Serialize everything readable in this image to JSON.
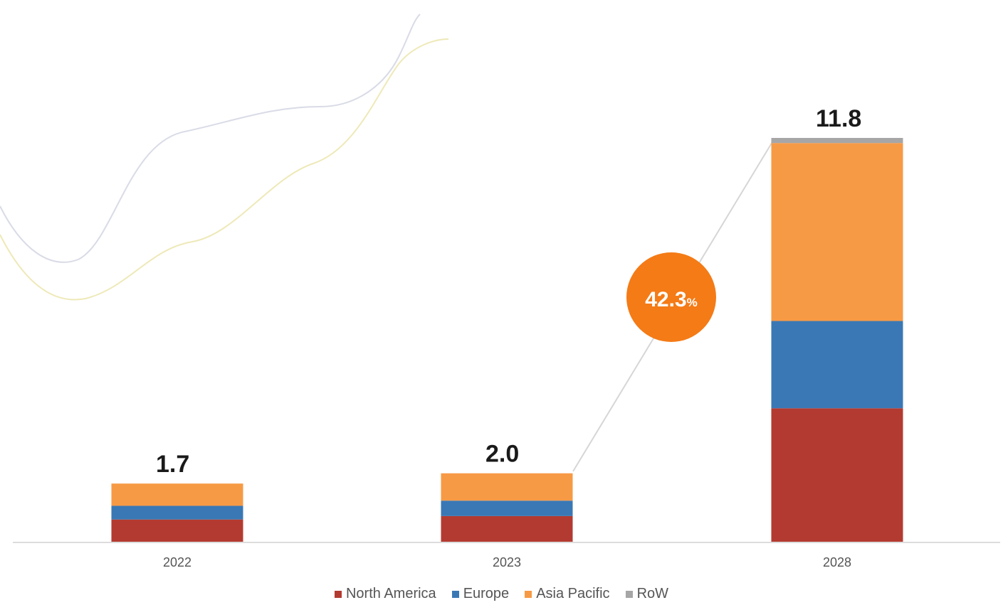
{
  "chart_data": {
    "type": "bar",
    "stacked": true,
    "categories": [
      "2022",
      "2023",
      "2028"
    ],
    "totals": [
      "1.7",
      "2.0",
      "11.8"
    ],
    "series": [
      {
        "name": "North America",
        "color": "#B33A30",
        "values": [
          0.65,
          0.75,
          3.9
        ]
      },
      {
        "name": "Europe",
        "color": "#3A78B5",
        "values": [
          0.4,
          0.45,
          2.55
        ]
      },
      {
        "name": "Asia Pacific",
        "color": "#F79A45",
        "values": [
          0.65,
          0.8,
          5.2
        ]
      },
      {
        "name": "RoW",
        "color": "#A6A6A6",
        "values": [
          0.0,
          0.0,
          0.15
        ]
      }
    ],
    "annotation": {
      "value": "42.3",
      "unit": "%",
      "color": "#F47B16"
    },
    "ylim": [
      0,
      11.8
    ],
    "grid": false,
    "legend_position": "bottom",
    "xlabel": "",
    "ylabel": ""
  }
}
